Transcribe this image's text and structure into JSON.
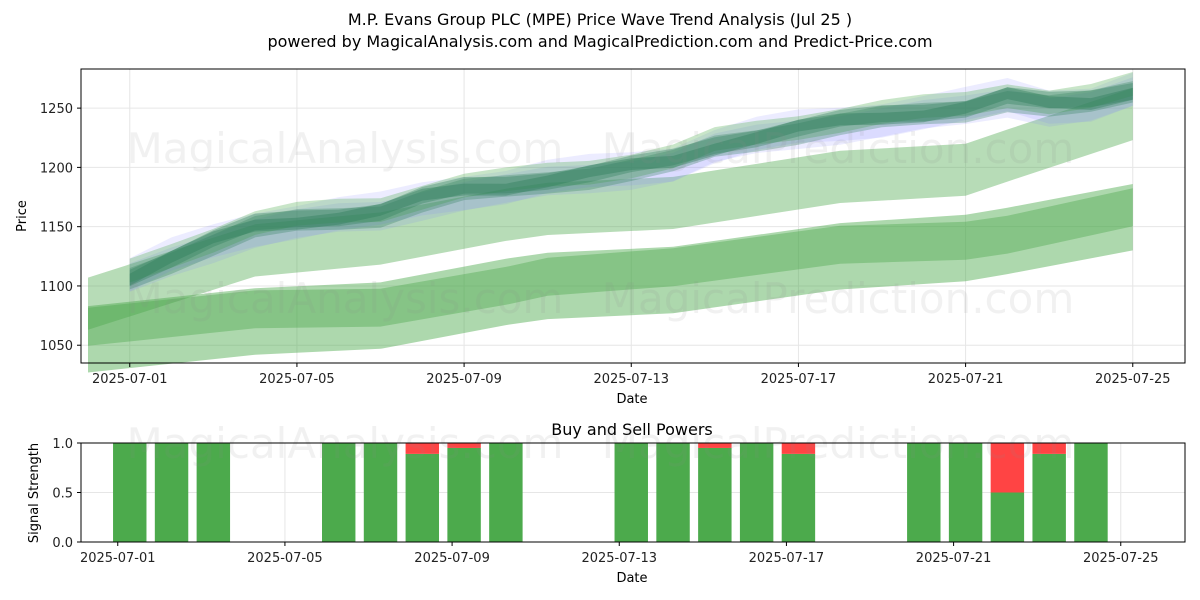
{
  "header": {
    "title": "M.P. Evans Group PLC (MPE) Price Wave Trend Analysis (Jul 25 )",
    "subtitle": "powered by MagicalAnalysis.com and MagicalPrediction.com and Predict-Price.com"
  },
  "watermarks": [
    "MagicalAnalysis.com",
    "MagicalPrediction.com"
  ],
  "colors": {
    "band_green": "#4aa84a",
    "band_blue": "#7f7fff",
    "band_dark": "#2e7d5a",
    "buy": "#4caa4c",
    "sell": "#ff4444",
    "grid": "#e6e6e6"
  },
  "chart_data": [
    {
      "type": "area",
      "title": "",
      "xlabel": "Date",
      "ylabel": "Price",
      "x_ticks": [
        "2025-07-01",
        "2025-07-05",
        "2025-07-09",
        "2025-07-13",
        "2025-07-17",
        "2025-07-21",
        "2025-07-25"
      ],
      "y_ticks": [
        1050,
        1100,
        1150,
        1200,
        1250
      ],
      "xlim": [
        "2025-06-29 20:00",
        "2025-07-26 06:00"
      ],
      "ylim": [
        1035,
        1283
      ],
      "grid": true,
      "series": [
        {
          "color": "#2e7d5a",
          "x": [
            "2025-07-01",
            "2025-07-02",
            "2025-07-03",
            "2025-07-04",
            "2025-07-05",
            "2025-07-06",
            "2025-07-07",
            "2025-07-08",
            "2025-07-09",
            "2025-07-10",
            "2025-07-11",
            "2025-07-12",
            "2025-07-13",
            "2025-07-14",
            "2025-07-15",
            "2025-07-16",
            "2025-07-17",
            "2025-07-18",
            "2025-07-19",
            "2025-07-20",
            "2025-07-21",
            "2025-07-22",
            "2025-07-23",
            "2025-07-24",
            "2025-07-25"
          ],
          "values": [
            1108,
            1124,
            1138,
            1150,
            1155,
            1159,
            1163,
            1174,
            1181,
            1184,
            1190,
            1195,
            1200,
            1205,
            1218,
            1226,
            1233,
            1238,
            1242,
            1246,
            1251,
            1260,
            1253,
            1255,
            1265
          ]
        },
        {
          "color": "#4aa84a",
          "x": [
            "2025-06-30",
            "2025-07-04",
            "2025-07-07",
            "2025-07-10",
            "2025-07-11",
            "2025-07-14",
            "2025-07-18",
            "2025-07-21",
            "2025-07-22",
            "2025-07-25"
          ],
          "values": [
            1055,
            1070,
            1075,
            1095,
            1100,
            1105,
            1125,
            1132,
            1138,
            1158
          ]
        },
        {
          "color": "#4aa84a",
          "x": [
            "2025-06-30",
            "2025-07-04",
            "2025-07-07",
            "2025-07-10",
            "2025-07-11",
            "2025-07-14",
            "2025-07-18",
            "2025-07-21",
            "2025-07-22",
            "2025-07-25"
          ],
          "values": [
            1085,
            1130,
            1140,
            1160,
            1165,
            1170,
            1192,
            1198,
            1210,
            1245
          ]
        }
      ]
    },
    {
      "type": "bar",
      "title": "Buy and Sell Powers",
      "xlabel": "Date",
      "ylabel": "Signal Strength",
      "x_ticks": [
        "2025-07-01",
        "2025-07-05",
        "2025-07-09",
        "2025-07-13",
        "2025-07-17",
        "2025-07-21",
        "2025-07-25"
      ],
      "y_ticks": [
        "0.0",
        "0.5",
        "1.0"
      ],
      "ylim": [
        0,
        1
      ],
      "categories": [
        "2025-07-01",
        "2025-07-02",
        "2025-07-03",
        "2025-07-06",
        "2025-07-07",
        "2025-07-08",
        "2025-07-09",
        "2025-07-10",
        "2025-07-13",
        "2025-07-14",
        "2025-07-15",
        "2025-07-16",
        "2025-07-17",
        "2025-07-20",
        "2025-07-21",
        "2025-07-22",
        "2025-07-23",
        "2025-07-24"
      ],
      "series": [
        {
          "color": "#4caa4c",
          "values": [
            1.0,
            1.0,
            1.0,
            1.0,
            1.0,
            0.89,
            0.95,
            1.0,
            1.0,
            1.0,
            0.95,
            1.0,
            0.89,
            1.0,
            1.0,
            0.5,
            0.89,
            1.0
          ]
        },
        {
          "color": "#ff4444",
          "values": [
            0.0,
            0.0,
            0.0,
            0.0,
            0.0,
            0.11,
            0.05,
            0.0,
            0.0,
            0.0,
            0.05,
            0.0,
            0.11,
            0.0,
            0.0,
            0.5,
            0.11,
            0.0
          ]
        }
      ]
    }
  ]
}
